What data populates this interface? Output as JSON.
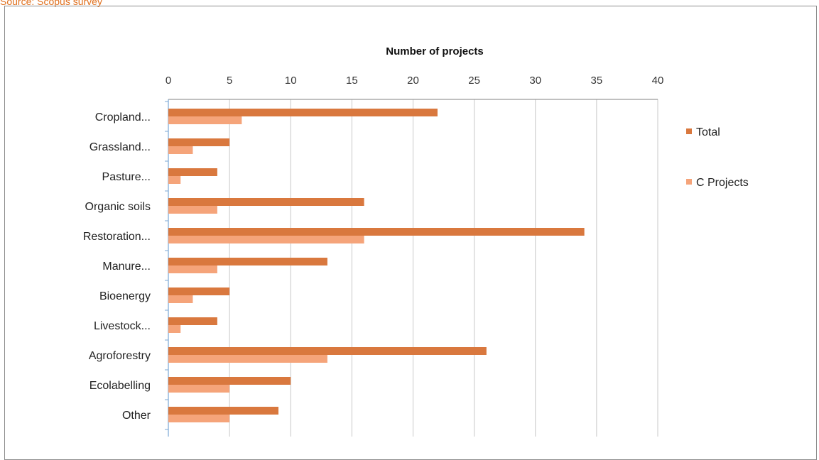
{
  "caption": "Source: Scopus survey",
  "chart_data": {
    "type": "bar",
    "orientation": "horizontal",
    "title": "Number of projects",
    "xlim": [
      0,
      40
    ],
    "xticks": [
      0,
      5,
      10,
      15,
      20,
      25,
      30,
      35,
      40
    ],
    "grid": true,
    "legend_position": "right",
    "categories": [
      "Cropland...",
      "Grassland...",
      "Pasture...",
      "Organic soils",
      "Restoration...",
      "Manure...",
      "Bioenergy",
      "Livestock...",
      "Agroforestry",
      "Ecolabelling",
      "Other"
    ],
    "series": [
      {
        "name": "Total",
        "color": "#d9783e",
        "values": [
          22,
          5,
          4,
          16,
          34,
          13,
          5,
          4,
          26,
          10,
          9
        ]
      },
      {
        "name": "C Projects",
        "color": "#f5a47a",
        "values": [
          6,
          2,
          1,
          4,
          16,
          4,
          2,
          1,
          13,
          5,
          5
        ]
      }
    ]
  }
}
